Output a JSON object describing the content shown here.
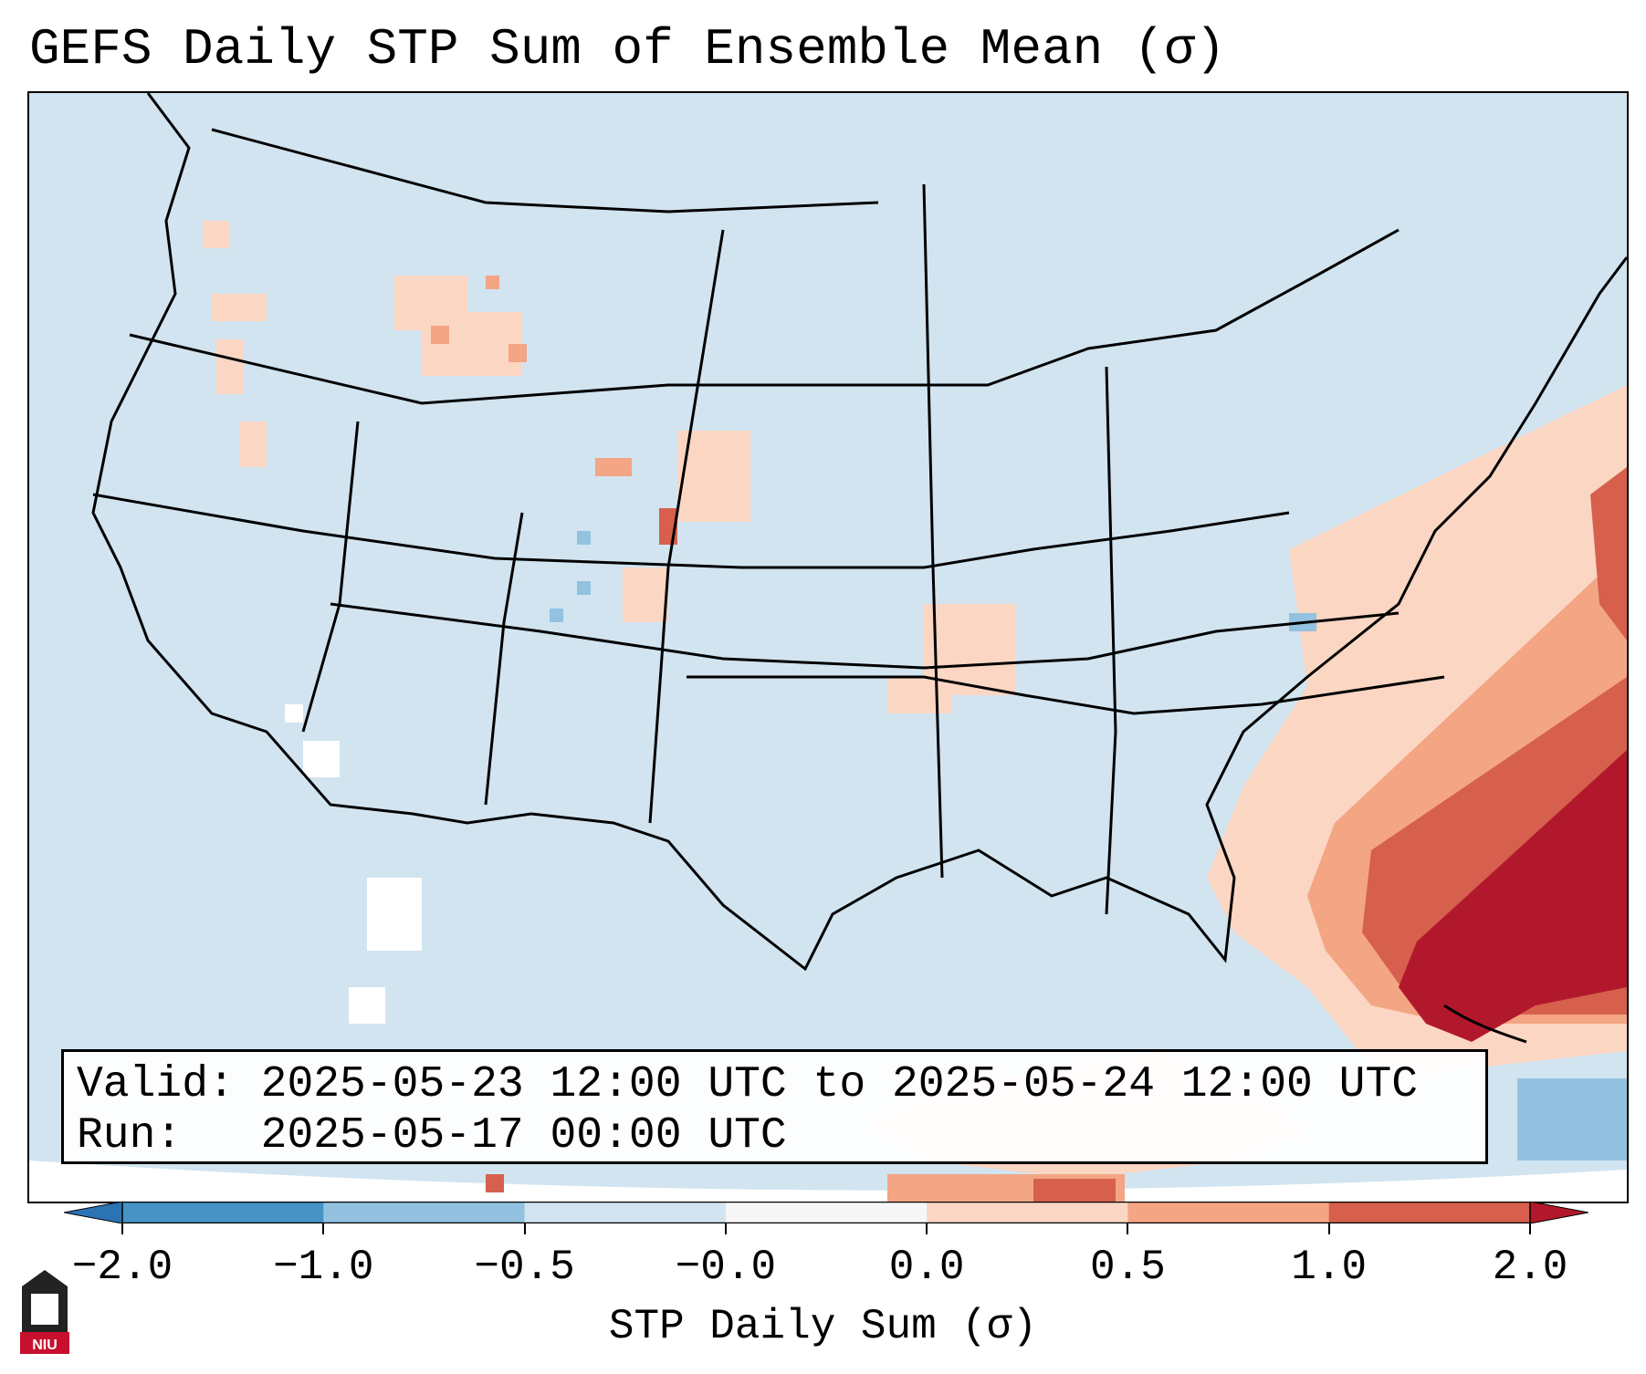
{
  "title": "GEFS Daily STP Sum of Ensemble Mean (σ)",
  "info": {
    "valid_label": "Valid:",
    "valid_value": "2025-05-23 12:00 UTC to 2025-05-24 12:00 UTC",
    "run_label": "Run:",
    "run_value": "2025-05-17 00:00 UTC"
  },
  "colorbar": {
    "label": "STP Daily Sum (σ)",
    "ticks": [
      "−2.0",
      "−1.0",
      "−0.5",
      "−0.0",
      "0.0",
      "0.5",
      "1.0",
      "2.0"
    ],
    "bins": [
      {
        "range": "< -2.0",
        "color": "#2c73b4"
      },
      {
        "range": "-2.0 to -1.0",
        "color": "#4793c6"
      },
      {
        "range": "-1.0 to -0.5",
        "color": "#92c2df"
      },
      {
        "range": "-0.5 to -0.0",
        "color": "#d1e4f0"
      },
      {
        "range": "-0.0 to 0.0",
        "color": "#f7f7f7"
      },
      {
        "range": "0.0 to 0.5",
        "color": "#fbd6c3"
      },
      {
        "range": "0.5 to 1.0",
        "color": "#f3a584"
      },
      {
        "range": "1.0 to 2.0",
        "color": "#d6604d"
      },
      {
        "range": "> 2.0",
        "color": "#b2182b"
      }
    ]
  },
  "map": {
    "region": "CONUS",
    "background_color": "#d1e4f0",
    "notable_features": [
      {
        "area": "Southeast Atlantic coast / Bahamas",
        "category": "> 2.0"
      },
      {
        "area": "Western Atlantic offshore band",
        "category": "1.0 to 2.0"
      },
      {
        "area": "Northern Rockies / Montana",
        "category": "0.0 to 0.5"
      },
      {
        "area": "Eastern Colorado / Nebraska",
        "category": "0.5 to 1.0"
      },
      {
        "area": "Gulf of Mexico",
        "category": "0.0 to 0.5"
      }
    ]
  },
  "logo_text": "NIU"
}
